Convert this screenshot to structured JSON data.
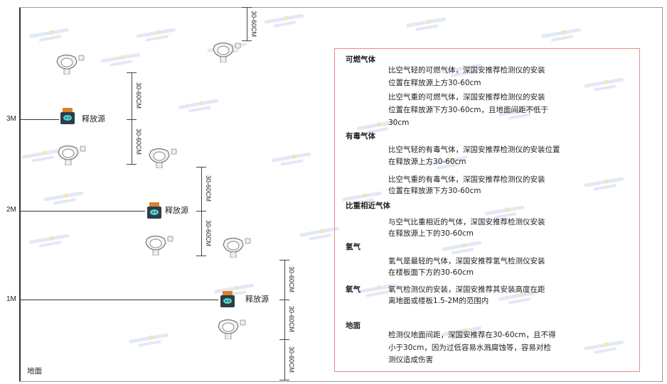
{
  "watermark": "SINGOAN 深国安",
  "levels": [
    "3M",
    "2M",
    "1M"
  ],
  "ground_label": "地面",
  "source_label": "释放源",
  "dim_label": "30-60CM",
  "colors": {
    "box_border": "#ee8888",
    "source_body": "#2e3c4a",
    "source_cap": "#d9822b",
    "source_symbol": "#4fd1c5"
  },
  "notes": [
    {
      "title": "可燃气体",
      "paras": [
        [
          "比空气轻的可燃气体，深国安推荐检测仪的安装",
          "位置在释放源上方30-60cm"
        ],
        [
          "比空气重的可燃气体，深国安推荐检测仪的安装",
          "位置在释放源下方30-60cm，且地面间距不低于",
          "30cm"
        ]
      ]
    },
    {
      "title": "有毒气体",
      "paras": [
        [
          "比空气轻的有毒气体，深国安推荐检测仪的安装位置",
          "在释放源上方30-60cm"
        ],
        [
          "比空气重的有毒气体，深国安推荐检测仪的安装",
          "位置在释放源下方30-60cm"
        ]
      ]
    },
    {
      "title": "比重相近气体",
      "paras": [
        [
          "与空气比重相近的气体，深国安推荐检测仪安装",
          "在释放源上下的30-60cm"
        ]
      ]
    },
    {
      "title": "氢气",
      "paras": [
        [
          "氢气是最轻的气体，深国安推荐氢气检测仪安装",
          "在楼板面下方的30-60cm"
        ]
      ]
    },
    {
      "title": "氧气",
      "paras": [
        [
          "氧气检测仪的安装，深国安推荐其安装高度在距",
          "离地面或楼板1.5-2M的范围内"
        ]
      ]
    },
    {
      "title": "地面",
      "paras": [
        [
          "检测仪地面间距，深国安推荐在30-60cm，且不得",
          "小于30cm，因为过低容易水溅腐蚀等，容易对检",
          "测仪造成伤害"
        ]
      ]
    }
  ]
}
